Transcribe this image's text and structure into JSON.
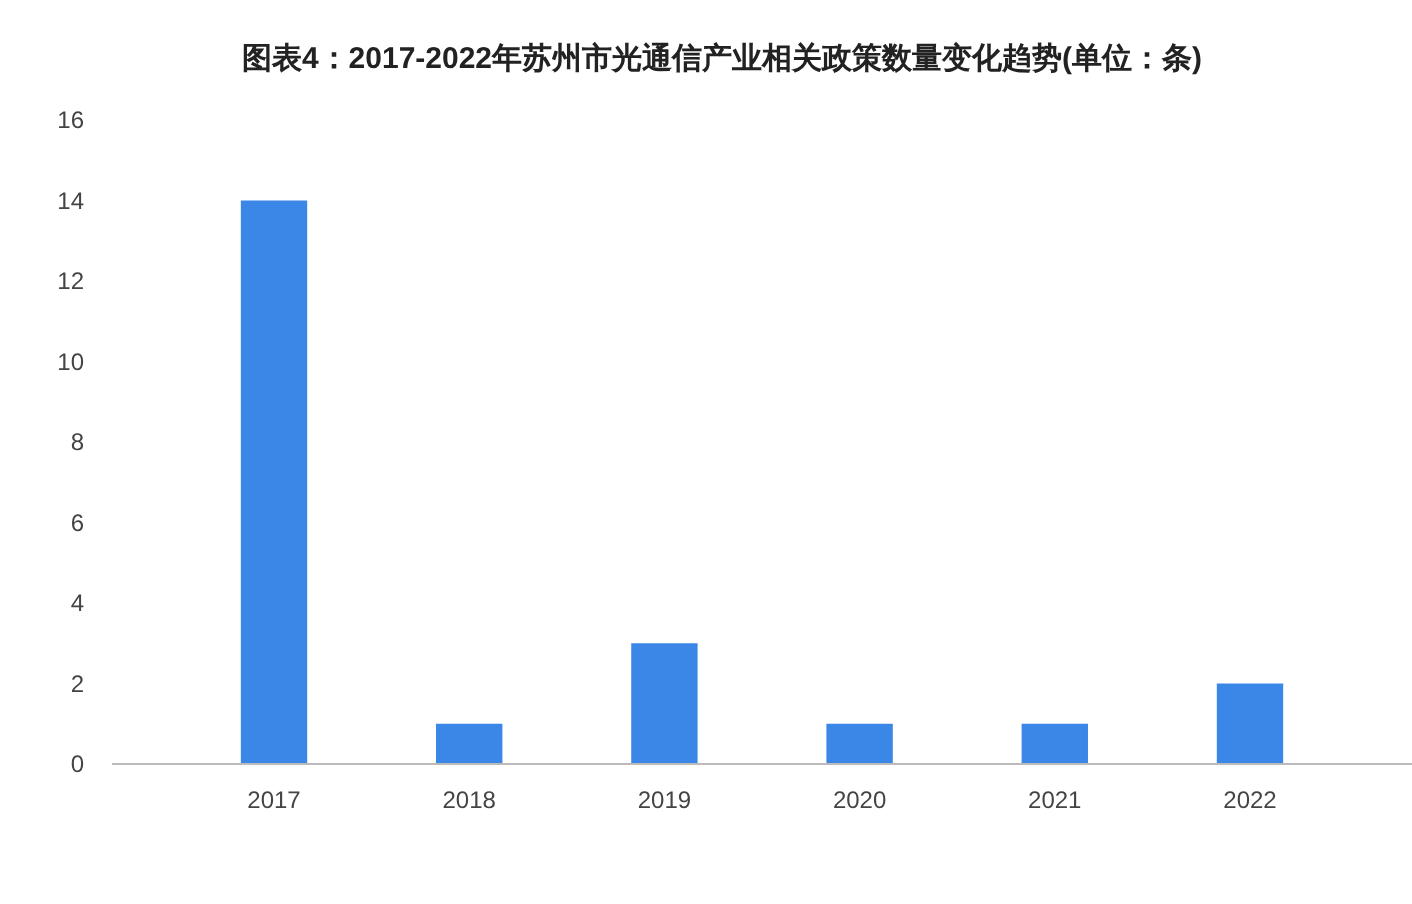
{
  "chart_data": {
    "type": "bar",
    "title": "图表4：2017-2022年苏州市光通信产业相关政策数量变化趋势(单位：条)",
    "categories": [
      "2017",
      "2018",
      "2019",
      "2020",
      "2021",
      "2022"
    ],
    "values": [
      14,
      1,
      3,
      1,
      1,
      2
    ],
    "color": "#3a87e8",
    "ylim": [
      0,
      16
    ],
    "yticks": [
      0,
      2,
      4,
      6,
      8,
      10,
      12,
      14,
      16
    ],
    "grid": false
  }
}
